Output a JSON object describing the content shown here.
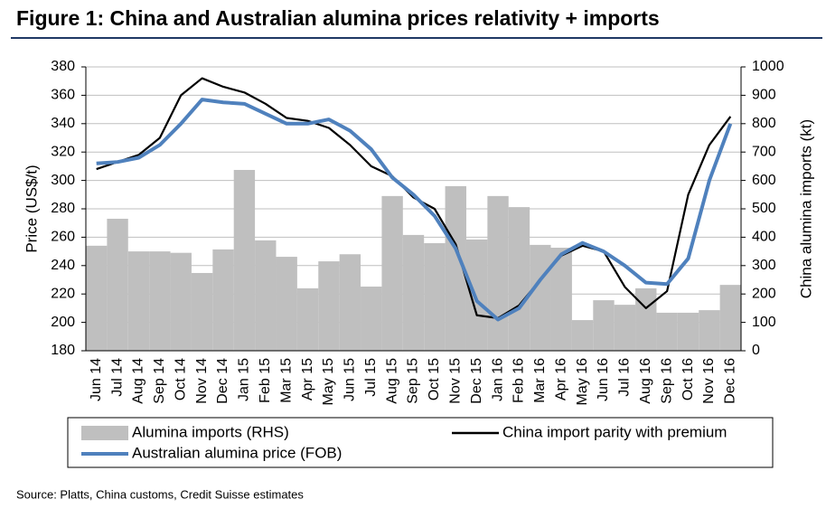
{
  "chart_data": {
    "type": "combo",
    "title": "Figure 1: China and Australian alumina prices relativity + imports",
    "source": "Source: Platts, China customs,  Credit Suisse estimates",
    "y_label": "Price (US$/t)",
    "y2_label": "China alumina imports (kt)",
    "categories": [
      "Jun 14",
      "Jul 14",
      "Aug 14",
      "Sep 14",
      "Oct 14",
      "Nov 14",
      "Dec 14",
      "Jan 15",
      "Feb 15",
      "Mar 15",
      "Apr 15",
      "May 15",
      "Jun 15",
      "Jul 15",
      "Aug 15",
      "Sep 15",
      "Oct 15",
      "Nov 15",
      "Dec 15",
      "Jan 16",
      "Feb 16",
      "Mar 16",
      "Apr 16",
      "May 16",
      "Jun 16",
      "Jul 16",
      "Aug 16",
      "Sep 16",
      "Oct 16",
      "Nov 16",
      "Dec 16"
    ],
    "ylim": [
      180,
      380
    ],
    "yticks": [
      180,
      200,
      220,
      240,
      260,
      280,
      300,
      320,
      340,
      360,
      380
    ],
    "y2lim": [
      0,
      1000
    ],
    "y2ticks": [
      0,
      100,
      200,
      300,
      400,
      500,
      600,
      700,
      800,
      900,
      1000
    ],
    "grid": true,
    "series": [
      {
        "name": "Alumina imports (RHS)",
        "type": "bar",
        "axis": "y2",
        "color": "#bfbfbf",
        "values": [
          370,
          465,
          350,
          350,
          345,
          274,
          357,
          637,
          389,
          331,
          220,
          315,
          340,
          226,
          545,
          408,
          379,
          580,
          392,
          545,
          506,
          373,
          363,
          108,
          178,
          162,
          220,
          134,
          134,
          143,
          232
        ]
      },
      {
        "name": "China import parity with premium",
        "type": "line",
        "color": "#000000",
        "values": [
          308,
          313,
          318,
          330,
          360,
          372,
          366,
          362,
          354,
          344,
          342,
          337,
          325,
          310,
          303,
          288,
          280,
          255,
          205,
          203,
          212,
          230,
          247,
          254,
          250,
          225,
          210,
          222,
          290,
          325,
          345
        ]
      },
      {
        "name": "Australian alumina price (FOB)",
        "type": "line",
        "color": "#4f81bd",
        "values": [
          312,
          313,
          316,
          325,
          340,
          357,
          355,
          354,
          347,
          340,
          340,
          343,
          335,
          322,
          302,
          290,
          275,
          252,
          215,
          202,
          210,
          230,
          248,
          256,
          250,
          240,
          228,
          227,
          245,
          300,
          340
        ]
      }
    ]
  }
}
